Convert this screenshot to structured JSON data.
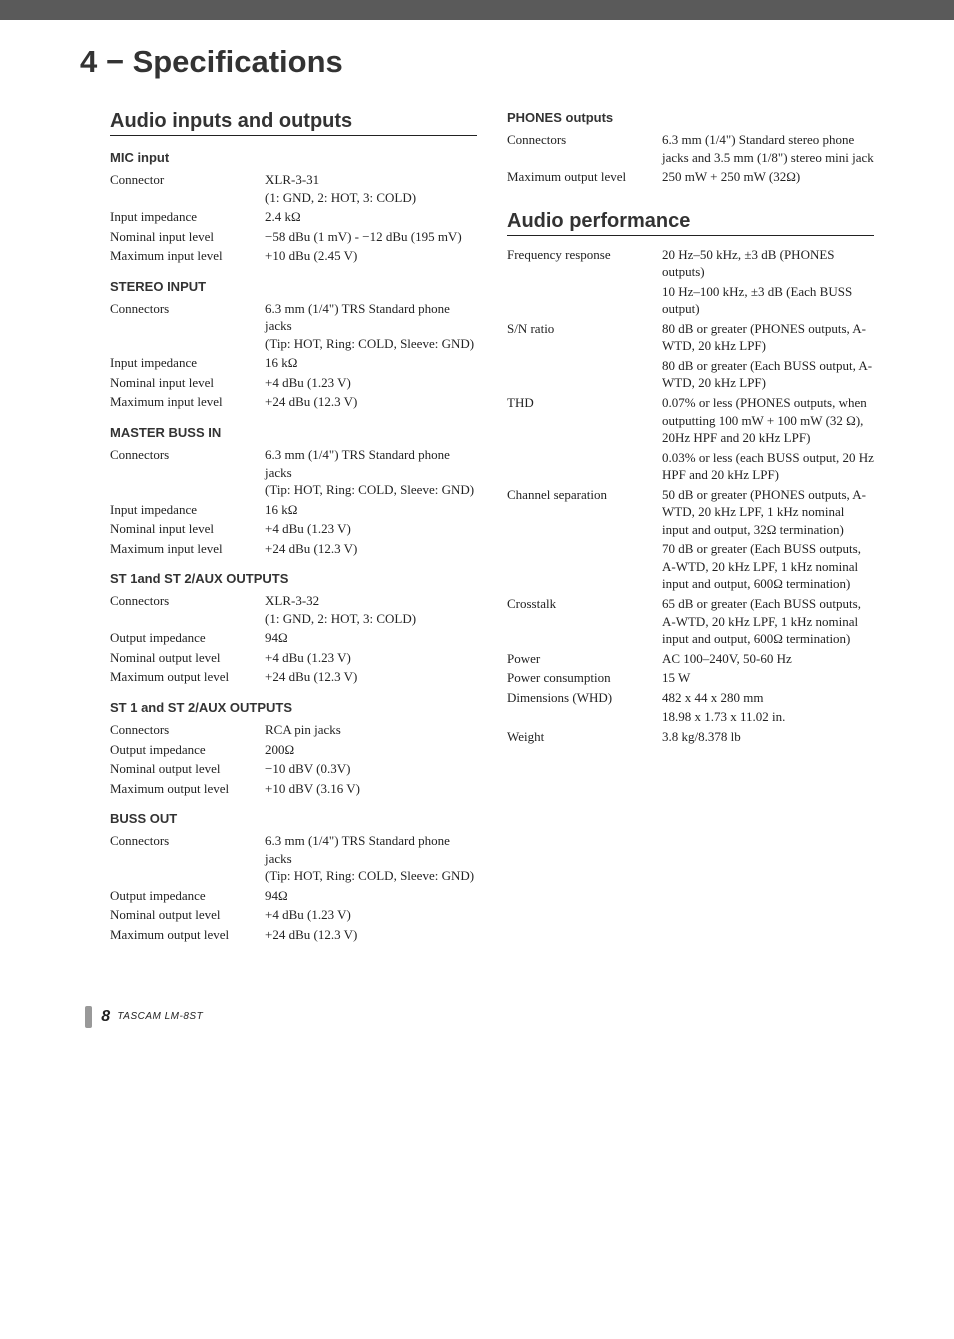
{
  "page": {
    "title": "4 − Specifications",
    "footer_page": "8",
    "footer_text": "TASCAM  LM-8ST"
  },
  "left": {
    "section_title": "Audio inputs and outputs",
    "groups": [
      {
        "heading": "MIC input",
        "rows": [
          {
            "label": "Connector",
            "value": "XLR-3-31\n(1: GND, 2: HOT, 3: COLD)"
          },
          {
            "label": "Input impedance",
            "value": "2.4 kΩ"
          },
          {
            "label": "Nominal input level",
            "value": "−58 dBu (1 mV) - −12 dBu (195 mV)"
          },
          {
            "label": "Maximum input level",
            "value": "+10 dBu (2.45 V)"
          }
        ]
      },
      {
        "heading": "STEREO INPUT",
        "rows": [
          {
            "label": "Connectors",
            "value": "6.3 mm (1/4\") TRS Standard phone jacks\n(Tip: HOT, Ring: COLD, Sleeve: GND)"
          },
          {
            "label": "Input impedance",
            "value": "16 kΩ"
          },
          {
            "label": "Nominal input level",
            "value": "+4 dBu (1.23 V)"
          },
          {
            "label": "Maximum input level",
            "value": "+24 dBu (12.3 V)"
          }
        ]
      },
      {
        "heading": "MASTER BUSS IN",
        "rows": [
          {
            "label": "Connectors",
            "value": "6.3 mm (1/4\") TRS Standard phone jacks\n(Tip: HOT, Ring: COLD, Sleeve: GND)"
          },
          {
            "label": "Input impedance",
            "value": "16 kΩ"
          },
          {
            "label": "Nominal input level",
            "value": "+4 dBu (1.23 V)"
          },
          {
            "label": "Maximum input level",
            "value": "+24 dBu (12.3 V)"
          }
        ]
      },
      {
        "heading": "ST 1and ST 2/AUX OUTPUTS",
        "rows": [
          {
            "label": "Connectors",
            "value": "XLR-3-32\n(1: GND, 2: HOT, 3: COLD)"
          },
          {
            "label": "Output impedance",
            "value": "94Ω"
          },
          {
            "label": "Nominal output level",
            "value": "+4 dBu (1.23 V)"
          },
          {
            "label": "Maximum output level",
            "value": "+24 dBu (12.3 V)"
          }
        ]
      },
      {
        "heading": "ST 1 and ST 2/AUX OUTPUTS",
        "rows": [
          {
            "label": "Connectors",
            "value": "RCA pin jacks"
          },
          {
            "label": "Output impedance",
            "value": "200Ω"
          },
          {
            "label": "Nominal output level",
            "value": "−10 dBV (0.3V)"
          },
          {
            "label": "Maximum output level",
            "value": "+10 dBV (3.16 V)"
          }
        ]
      },
      {
        "heading": "BUSS OUT",
        "rows": [
          {
            "label": "Connectors",
            "value": "6.3 mm (1/4\") TRS Standard phone jacks\n(Tip: HOT, Ring: COLD, Sleeve: GND)"
          },
          {
            "label": "Output impedance",
            "value": "94Ω"
          },
          {
            "label": "Nominal output level",
            "value": "+4 dBu (1.23 V)"
          },
          {
            "label": "Maximum output level",
            "value": "+24 dBu (12.3 V)"
          }
        ]
      }
    ]
  },
  "right_top": {
    "heading": "PHONES outputs",
    "rows": [
      {
        "label": "Connectors",
        "value": "6.3 mm (1/4\") Standard stereo phone jacks and 3.5 mm (1/8\") stereo mini jack"
      },
      {
        "label": "Maximum output level",
        "value": "250 mW + 250 mW (32Ω)"
      }
    ]
  },
  "right": {
    "section_title": "Audio performance",
    "rows": [
      {
        "label": "Frequency response",
        "value": "20 Hz–50 kHz, ±3 dB (PHONES outputs)"
      },
      {
        "label": "",
        "value": "10 Hz–100 kHz, ±3 dB (Each BUSS output)"
      },
      {
        "label": "S/N ratio",
        "value": "80 dB or greater (PHONES outputs, A-WTD, 20 kHz LPF)"
      },
      {
        "label": "",
        "value": "80 dB or greater (Each BUSS output, A-WTD, 20 kHz LPF)"
      },
      {
        "label": "THD",
        "value": "0.07% or less (PHONES outputs, when outputting 100 mW + 100 mW (32 Ω), 20Hz HPF and 20 kHz LPF)"
      },
      {
        "label": "",
        "value": "0.03% or less (each BUSS output, 20 Hz HPF and 20 kHz LPF)"
      },
      {
        "label": "Channel separation",
        "value": "50 dB or greater (PHONES outputs, A-WTD, 20 kHz LPF, 1 kHz nominal input and output, 32Ω termination)"
      },
      {
        "label": "",
        "value": "70 dB or greater (Each BUSS outputs, A-WTD, 20 kHz LPF, 1 kHz nominal input and output, 600Ω termination)"
      },
      {
        "label": "Crosstalk",
        "value": "65 dB or greater (Each BUSS outputs, A-WTD, 20 kHz LPF, 1 kHz nominal input and output, 600Ω termination)"
      },
      {
        "label": "Power",
        "value": "AC 100–240V, 50-60 Hz"
      },
      {
        "label": "Power consumption",
        "value": "15 W"
      },
      {
        "label": "Dimensions (WHD)",
        "value": "482 x 44 x 280 mm"
      },
      {
        "label": "",
        "value": "18.98 x 1.73 x 11.02 in."
      },
      {
        "label": "Weight",
        "value": "3.8 kg/8.378 lb"
      }
    ]
  }
}
